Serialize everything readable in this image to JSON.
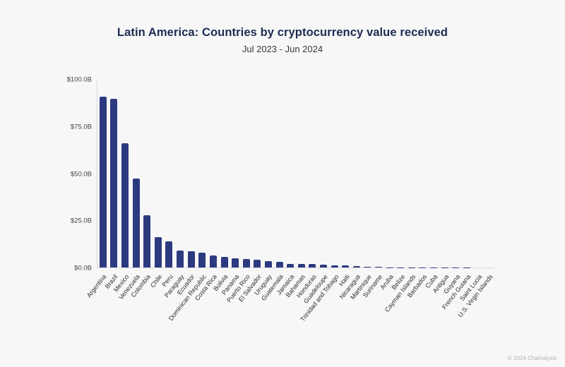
{
  "header": {
    "title": "Latin America: Countries by cryptocurrency value received",
    "subtitle": "Jul 2023 - Jun 2024"
  },
  "footer": {
    "copyright": "© 2024 Chainalysis"
  },
  "colors": {
    "background": "#f7f7f8",
    "bar": "#2c3a80",
    "title_text": "#1d2b50",
    "axis_line": "#d8d8dd"
  },
  "chart_data": {
    "type": "bar",
    "title": "Latin America: Countries by cryptocurrency value received",
    "subtitle": "Jul 2023 - Jun 2024",
    "xlabel": "",
    "ylabel": "",
    "unit": "billions USD",
    "ylim": [
      0,
      100
    ],
    "grid": false,
    "legend": "none",
    "bar_color": "#2c3a80",
    "yticks": [
      {
        "label": "$0.0B",
        "value": 0
      },
      {
        "label": "$25.0B",
        "value": 25
      },
      {
        "label": "$50.0B",
        "value": 50
      },
      {
        "label": "$75.0B",
        "value": 75
      },
      {
        "label": "$100.0B",
        "value": 100
      }
    ],
    "categories": [
      "Argentina",
      "Brazil",
      "Mexico",
      "Venezuela",
      "Colombia",
      "Chile",
      "Peru",
      "Paraguay",
      "Ecuador",
      "Dominican Republic",
      "Costa Rica",
      "Bolivia",
      "Panama",
      "Puerto Rico",
      "El Salvador",
      "Uruguay",
      "Guatemala",
      "Jamaica",
      "Bahamas",
      "Honduras",
      "Guadeloupe",
      "Trinidad and Tobago",
      "Haiti",
      "Nicaragua",
      "Martinique",
      "Suriname",
      "Aruba",
      "Belize",
      "Cayman Islands",
      "Barbados",
      "Cuba",
      "Antigua",
      "Guyana",
      "French Guiana",
      "Saint Lucia",
      "U.S. Virgin Islands"
    ],
    "values": [
      91,
      90,
      66,
      47.5,
      28,
      16,
      14,
      9,
      8.5,
      8,
      6.5,
      5.5,
      5,
      4.5,
      4,
      3.5,
      3,
      2,
      2,
      1.8,
      1.5,
      1.3,
      1,
      0.7,
      0.4,
      0.25,
      0.15,
      0.12,
      0.1,
      0.08,
      0.07,
      0.06,
      0.04,
      0.03,
      0.02,
      0.01
    ]
  }
}
